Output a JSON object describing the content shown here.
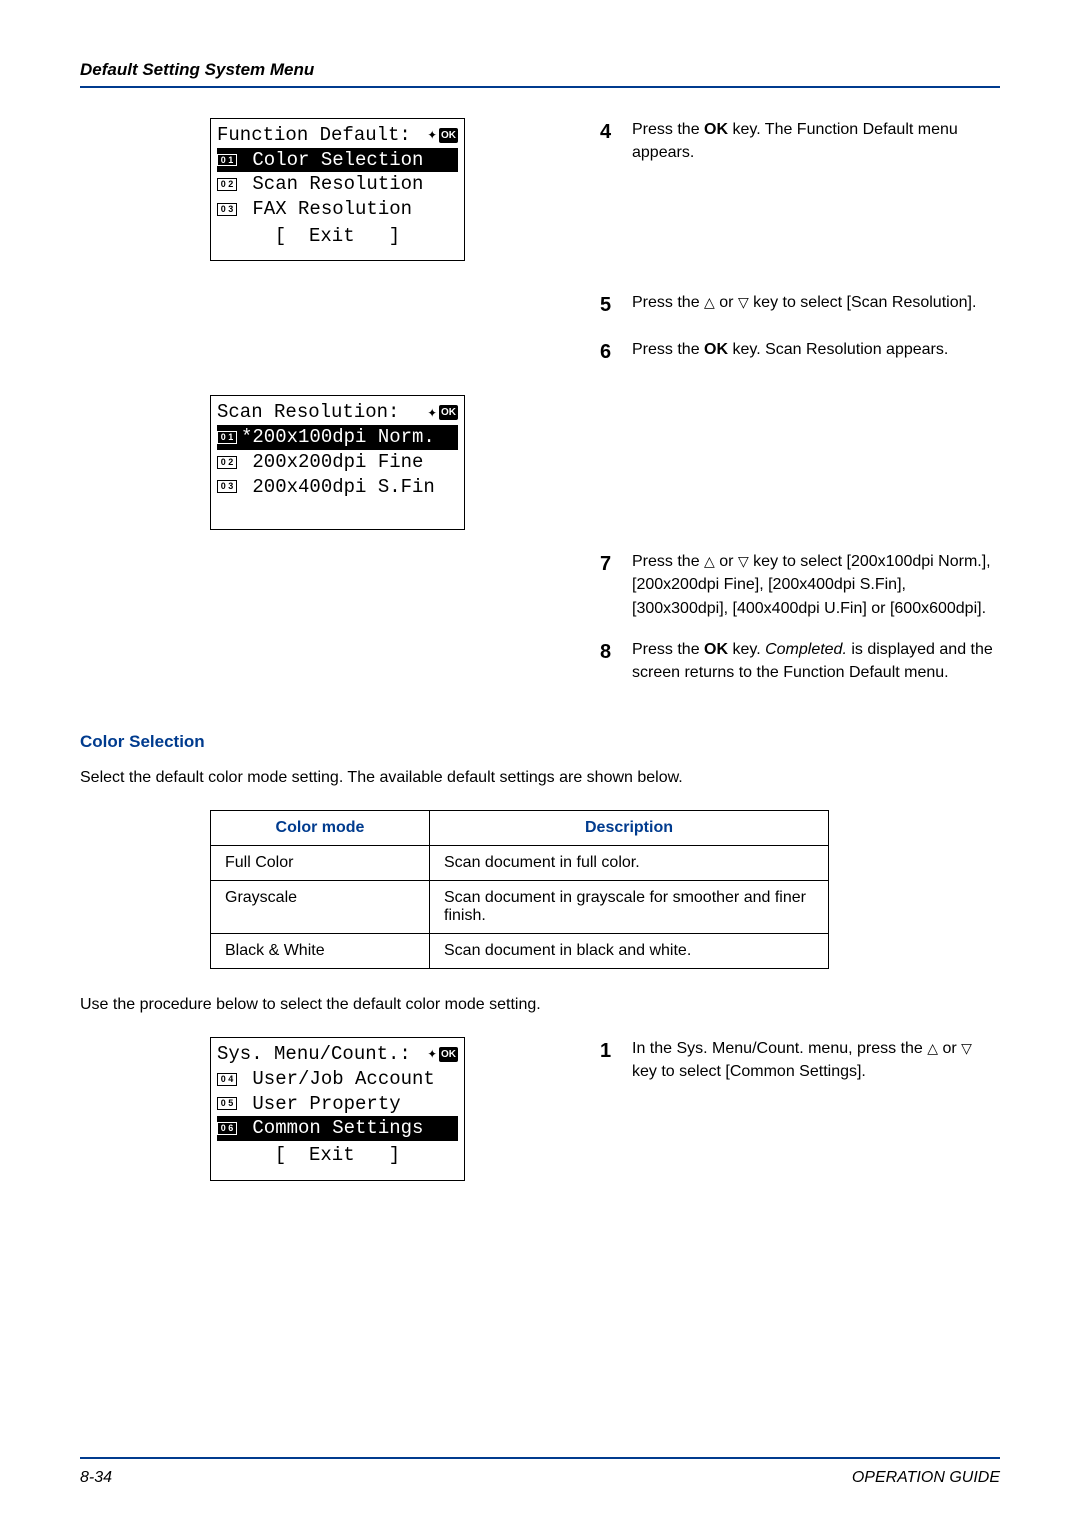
{
  "header_title": "Default Setting System Menu",
  "lcd1": {
    "title": "Function Default:",
    "items": [
      {
        "num": "0 1",
        "label": " Color Selection",
        "selected": true
      },
      {
        "num": "0 2",
        "label": " Scan Resolution",
        "selected": false
      },
      {
        "num": "0 3",
        "label": " FAX Resolution",
        "selected": false
      }
    ],
    "exit": "[  Exit   ]"
  },
  "lcd2": {
    "title": "Scan Resolution:",
    "items": [
      {
        "num": "0 1",
        "label": "*200x100dpi Norm.",
        "selected": true
      },
      {
        "num": "0 2",
        "label": " 200x200dpi Fine",
        "selected": false
      },
      {
        "num": "0 3",
        "label": " 200x400dpi S.Fin",
        "selected": false
      }
    ]
  },
  "lcd3": {
    "title": "Sys. Menu/Count.:",
    "items": [
      {
        "num": "0 4",
        "label": " User/Job Account",
        "selected": false
      },
      {
        "num": "0 5",
        "label": " User Property",
        "selected": false
      },
      {
        "num": "0 6",
        "label": " Common Settings",
        "selected": true
      }
    ],
    "exit": "[  Exit   ]"
  },
  "steps_a": [
    {
      "n": "4",
      "html": "Press the <b>OK</b> key. The Function Default menu appears."
    }
  ],
  "steps_b": [
    {
      "n": "5",
      "html": "Press the <span class='tri-up'>△</span> or <span class='tri-down'>▽</span> key to select [Scan Resolution]."
    },
    {
      "n": "6",
      "html": "Press the <b>OK</b> key. Scan Resolution appears."
    }
  ],
  "steps_c": [
    {
      "n": "7",
      "html": "Press the <span class='tri-up'>△</span> or <span class='tri-down'>▽</span> key to select [200x100dpi Norm.], [200x200dpi Fine], [200x400dpi S.Fin], [300x300dpi], [400x400dpi U.Fin] or [600x600dpi]."
    },
    {
      "n": "8",
      "html": "Press the <b>OK</b> key. <i>Completed.</i> is displayed and the screen returns to the Function Default menu."
    }
  ],
  "section_heading": "Color Selection",
  "section_intro": "Select the default color mode setting. The available default settings are shown below.",
  "table": {
    "headers": [
      "Color mode",
      "Description"
    ],
    "rows": [
      [
        "Full Color",
        "Scan document in full color."
      ],
      [
        "Grayscale",
        "Scan document in grayscale for smoother and finer finish."
      ],
      [
        "Black & White",
        "Scan document in black and white."
      ]
    ]
  },
  "procedure_intro": "Use the procedure below to select the default color mode setting.",
  "steps_d": [
    {
      "n": "1",
      "html": "In the Sys. Menu/Count. menu, press the <span class='tri-up'>△</span> or <span class='tri-down'>▽</span> key to select [Common Settings]."
    }
  ],
  "footer_left": "8-34",
  "footer_right": "OPERATION GUIDE",
  "ok_label": "OK",
  "colors": {
    "accent": "#003b8e"
  }
}
